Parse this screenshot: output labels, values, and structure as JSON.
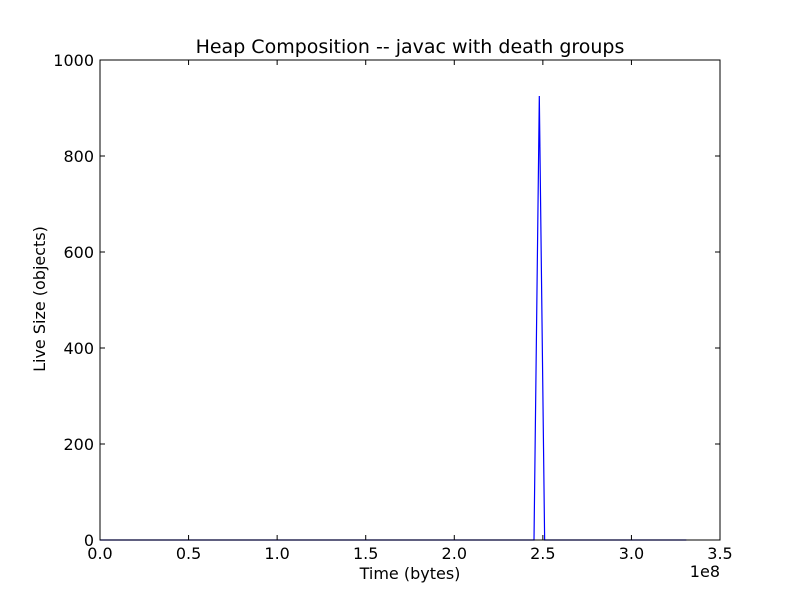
{
  "chart_data": {
    "type": "line",
    "title": "Heap Composition -- javac with death groups",
    "xlabel": "Time (bytes)",
    "ylabel": "Live Size (objects)",
    "xlim": [
      0,
      3.5
    ],
    "ylim": [
      0,
      1000
    ],
    "x_offset_label": "1e8",
    "x_ticks": [
      0.0,
      0.5,
      1.0,
      1.5,
      2.0,
      2.5,
      3.0,
      3.5
    ],
    "x_tick_labels": [
      "0.0",
      "0.5",
      "1.0",
      "1.5",
      "2.0",
      "2.5",
      "3.0",
      "3.5"
    ],
    "y_ticks": [
      0,
      200,
      400,
      600,
      800,
      1000
    ],
    "y_tick_labels": [
      "0",
      "200",
      "400",
      "600",
      "800",
      "1000"
    ],
    "grid": false,
    "series": [
      {
        "color": "#0000ff",
        "x": [
          0.0,
          2.45,
          2.48,
          2.51,
          3.31
        ],
        "y": [
          0,
          0,
          925,
          0,
          0
        ]
      }
    ]
  }
}
